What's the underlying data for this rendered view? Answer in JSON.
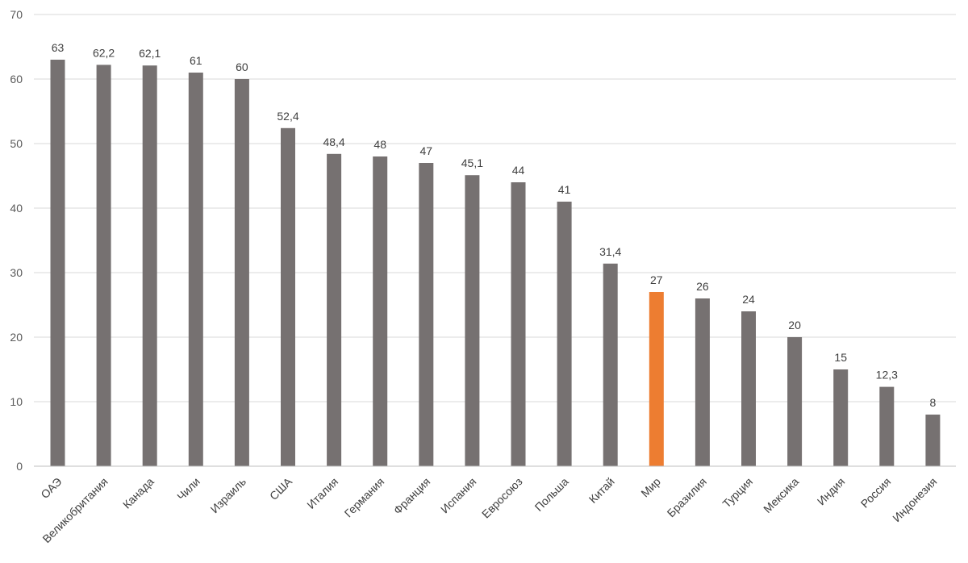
{
  "chart_data": {
    "type": "bar",
    "title": "",
    "xlabel": "",
    "ylabel": "",
    "ylim": [
      0,
      70
    ],
    "yticks": [
      0,
      10,
      20,
      30,
      40,
      50,
      60,
      70
    ],
    "ytick_labels": [
      "0",
      "10",
      "20",
      "30",
      "40",
      "50",
      "60",
      "70"
    ],
    "grid": true,
    "legend": "none",
    "categories": [
      "ОАЭ",
      "Великобритания",
      "Канада",
      "Чили",
      "Израиль",
      "США",
      "Италия",
      "Германия",
      "Франция",
      "Испания",
      "Евросоюз",
      "Польша",
      "Китай",
      "Мир",
      "Бразилия",
      "Турция",
      "Мексика",
      "Индия",
      "Россия",
      "Индонезия"
    ],
    "values": [
      63,
      62.2,
      62.1,
      61,
      60,
      52.4,
      48.4,
      48,
      47,
      45.1,
      44,
      41,
      31.4,
      27,
      26,
      24,
      20,
      15,
      12.3,
      8
    ],
    "value_labels": [
      "63",
      "62,2",
      "62,1",
      "61",
      "60",
      "52,4",
      "48,4",
      "48",
      "47",
      "45,1",
      "44",
      "41",
      "31,4",
      "27",
      "26",
      "24",
      "20",
      "15",
      "12,3",
      "8"
    ],
    "highlight_category": "Мир",
    "colors": {
      "bar": "#767171",
      "highlight": "#ed7d31"
    }
  }
}
